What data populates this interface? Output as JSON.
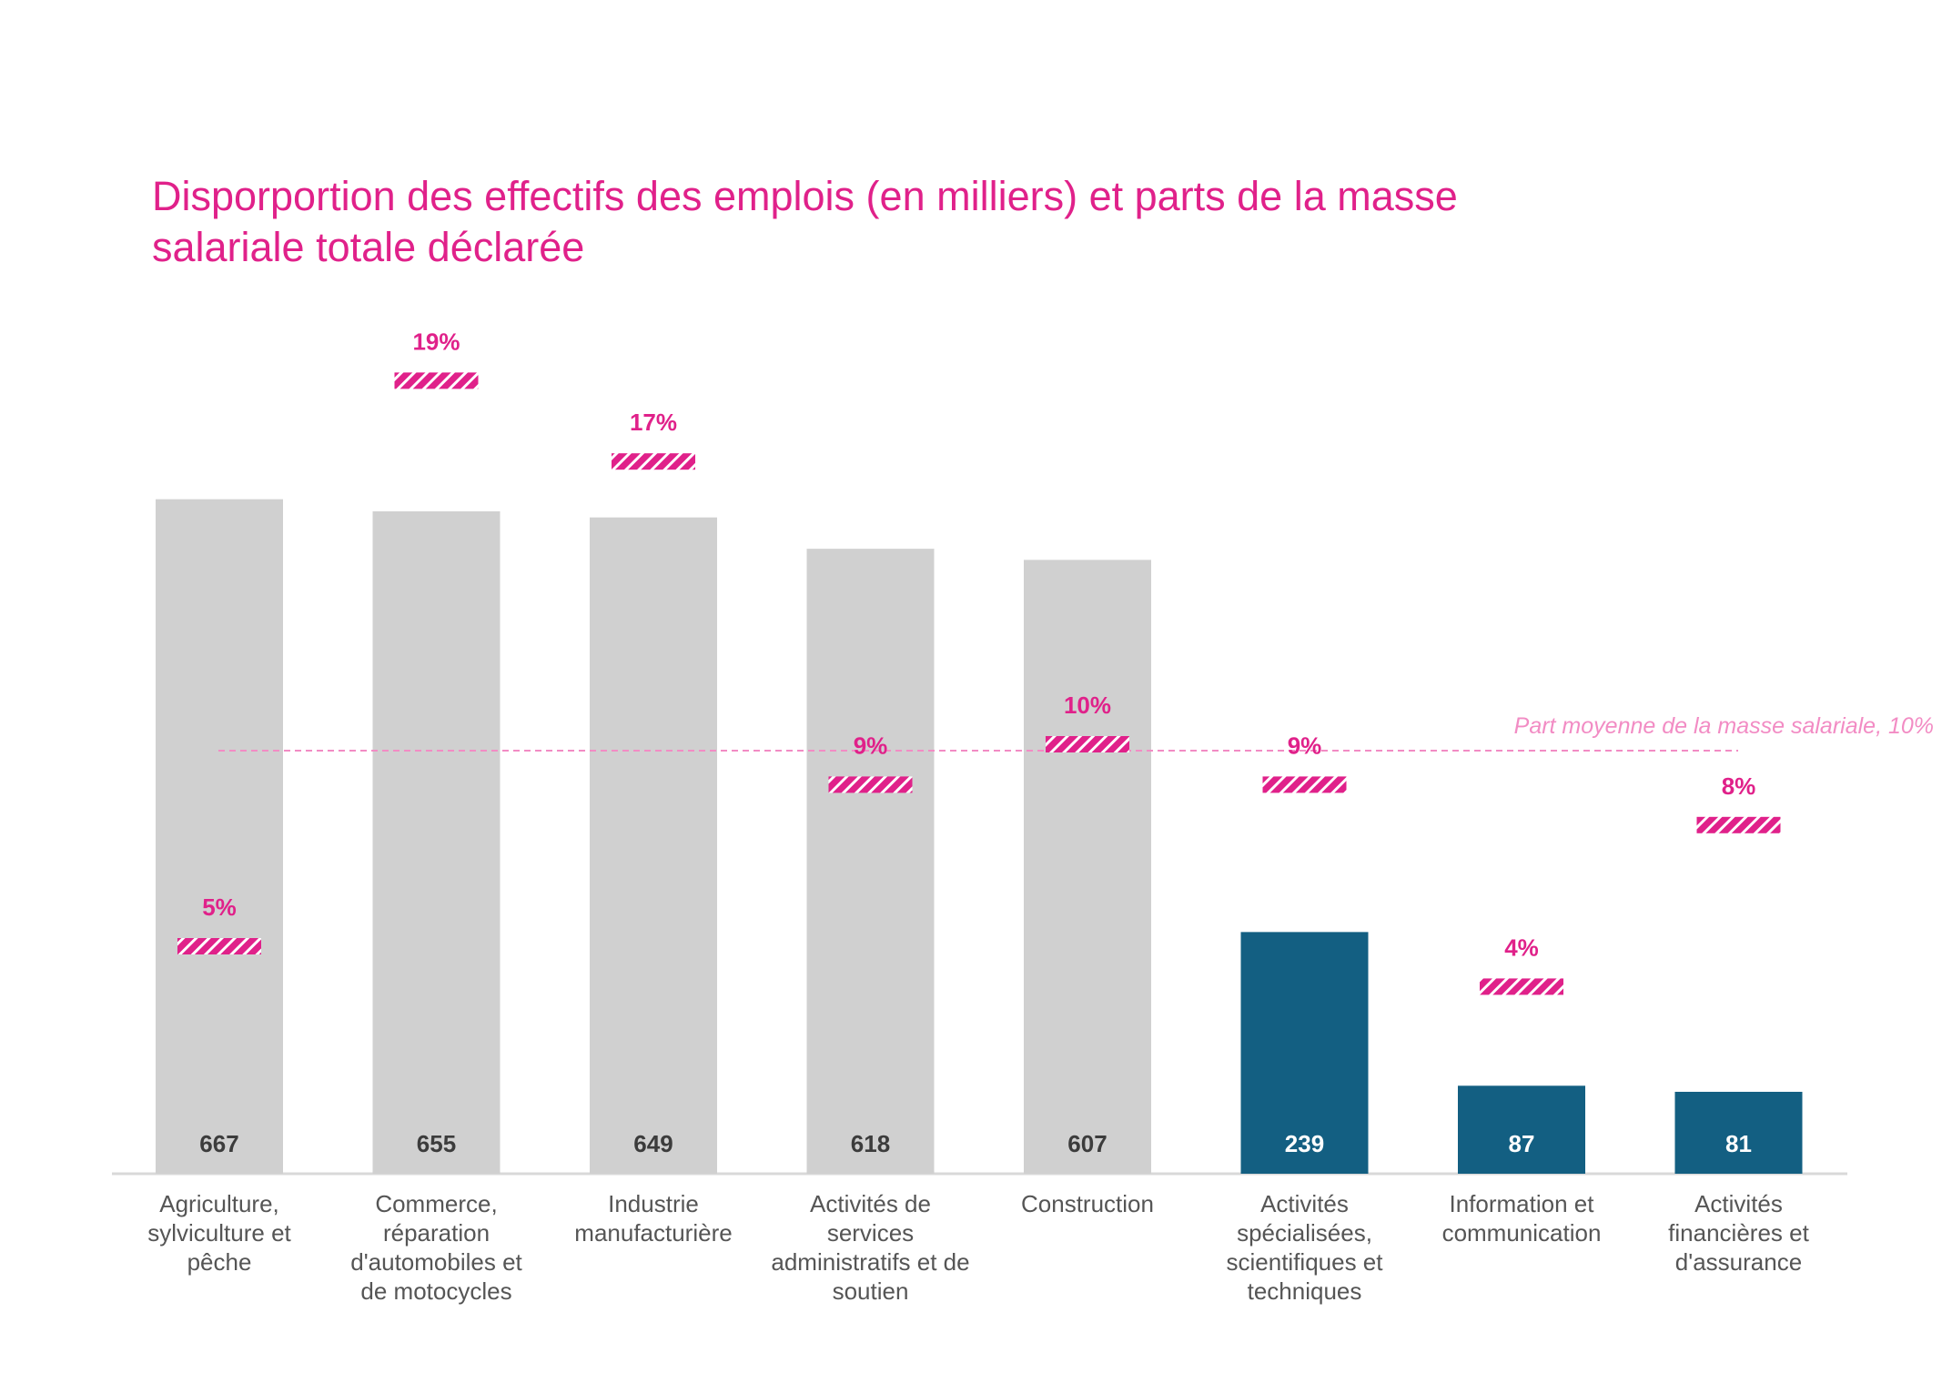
{
  "chart_data": {
    "type": "bar",
    "title_lines": [
      "Disporportion des effectifs des emplois (en milliers) et parts de la masse",
      "salariale totale déclarée"
    ],
    "categories": [
      [
        "Agriculture,",
        "sylviculture et",
        "pêche"
      ],
      [
        "Commerce,",
        "réparation",
        "d'automobiles et",
        "de motocycles"
      ],
      [
        "Industrie",
        "manufacturière"
      ],
      [
        "Activités de",
        "services",
        "administratifs et de",
        "soutien"
      ],
      [
        "Construction"
      ],
      [
        "Activités",
        "spécialisées,",
        "scientifiques et",
        "techniques"
      ],
      [
        "Information et",
        "communication"
      ],
      [
        "Activités",
        "financières et",
        "d'assurance"
      ]
    ],
    "series": [
      {
        "values": [
          667,
          655,
          649,
          618,
          607,
          239,
          87,
          81
        ]
      },
      {
        "values": [
          5,
          19,
          17,
          9,
          10,
          9,
          4,
          8
        ],
        "labels": [
          "5%",
          "19%",
          "17%",
          "9%",
          "10%",
          "9%",
          "4%",
          "8%"
        ]
      }
    ],
    "value_labels": [
      "667",
      "655",
      "649",
      "618",
      "607",
      "239",
      "87",
      "81"
    ],
    "highlighted": [
      false,
      false,
      false,
      false,
      false,
      true,
      true,
      true
    ],
    "reference_line": {
      "value": 10,
      "label": "Part moyenne de la masse salariale, 10%"
    },
    "ylim_effectifs": [
      0,
      700
    ],
    "ylim_share": [
      0,
      22
    ],
    "colors": {
      "title": "#e0218a",
      "bar_default": "#d0d0d0",
      "bar_highlight": "#135f82",
      "marker": "#e0218a",
      "reference_line": "#f28cc4",
      "value_label_default": "#3c3c3c",
      "value_label_highlight": "#ffffff",
      "category_label": "#555555",
      "axis": "#d9d9d9"
    }
  }
}
